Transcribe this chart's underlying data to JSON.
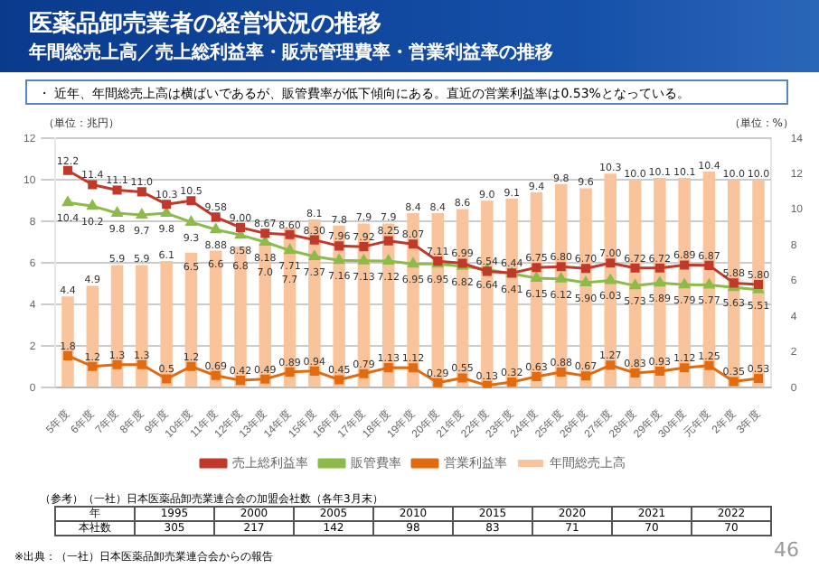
{
  "chart_data": {
    "type": "bar",
    "title": "医薬品卸売業者の経営状況の推移",
    "subtitle": "年間総売上高／売上総利益率・販売管理費率・営業利益率の推移",
    "ylabel": "（単位：兆円）",
    "y2label": "（単位：%）",
    "annotations": [
      "・ 近年、年間総売上高は横ばいであるが、販管費率が低下傾向にある。直近の営業利益率は0.53%となっている。",
      "※出典：（一社）日本医薬品卸売業連合会からの報告",
      "46",
      "（参考）（一社）日本医薬品卸売業連合会の加盟会社数（各年3月末）",
      "年",
      "1995",
      "2000",
      "2005",
      "2010",
      "2015",
      "2020",
      "2021",
      "2022",
      "本社数",
      "305",
      "217",
      "142",
      "98",
      "83",
      "71",
      "70",
      "70"
    ],
    "categories": [
      "5年度",
      "6年度",
      "7年度",
      "8年度",
      "9年度",
      "10年度",
      "11年度",
      "12年度",
      "13年度",
      "14年度",
      "15年度",
      "16年度",
      "17年度",
      "18年度",
      "19年度",
      "20年度",
      "21年度",
      "22年度",
      "23年度",
      "24年度",
      "25年度",
      "26年度",
      "27年度",
      "28年度",
      "29年度",
      "30年度",
      "元年度",
      "2年度",
      "3年度"
    ],
    "series": [
      {
        "name": "年間総売上高",
        "color": "#f9c49b",
        "values": [
          4.4,
          4.9,
          5.9,
          5.9,
          6.1,
          6.5,
          6.6,
          6.8,
          7.0,
          7.7,
          8.1,
          7.8,
          7.9,
          7.9,
          8.4,
          8.4,
          8.6,
          9.0,
          9.1,
          9.4,
          9.8,
          9.6,
          10.3,
          10.0,
          10.1,
          10.1,
          10.4,
          10.0,
          10.0
        ],
        "value_labels": [
          "4.4",
          "4.9",
          "5.9",
          "5.9",
          "6.1",
          "6.5",
          "6.6",
          "6.8",
          "7.0",
          "7.7",
          "8.1",
          "7.8",
          "7.9",
          "7.9",
          "8.4",
          "8.4",
          "8.6",
          "9.0",
          "9.1",
          "9.4",
          "9.8",
          "9.6",
          "10.3",
          "10.0",
          "10.1",
          "10.1",
          "10.4",
          "10.0",
          "10.0"
        ]
      },
      {
        "name": "売上総利益率",
        "type": "line",
        "axis": "y2",
        "marker": "square",
        "color": "#c0392b",
        "values": [
          12.2,
          11.4,
          11.1,
          11.0,
          10.3,
          10.5,
          9.58,
          9.0,
          8.67,
          8.6,
          8.3,
          7.96,
          7.92,
          8.25,
          8.07,
          7.11,
          6.99,
          6.54,
          6.44,
          6.75,
          6.8,
          6.7,
          7.0,
          6.72,
          6.72,
          6.89,
          6.87,
          5.88,
          5.8
        ],
        "value_labels": [
          "12.2",
          "11.4",
          "11.1",
          "11.0",
          "10.3",
          "10.5",
          "9.58",
          "9.00",
          "8.67",
          "8.60",
          "8.30",
          "7.96",
          "7.92",
          "8.25",
          "8.07",
          "7.11",
          "6.99",
          "6.54",
          "6.44",
          "6.75",
          "6.80",
          "6.70",
          "7.00",
          "6.72",
          "6.72",
          "6.89",
          "6.87",
          "5.88",
          "5.80"
        ]
      },
      {
        "name": "販管費率",
        "type": "line",
        "axis": "y2",
        "marker": "triangle",
        "color": "#8dbb4a",
        "values": [
          10.4,
          10.2,
          9.8,
          9.7,
          9.8,
          9.3,
          8.88,
          8.58,
          8.18,
          7.71,
          7.37,
          7.16,
          7.13,
          7.12,
          6.95,
          6.95,
          6.82,
          6.64,
          6.41,
          6.15,
          6.12,
          5.9,
          6.03,
          5.73,
          5.89,
          5.79,
          5.77,
          5.63,
          5.51
        ],
        "value_labels": [
          "10.4",
          "10.2",
          "9.8",
          "9.7",
          "9.8",
          "9.3",
          "8.88",
          "8.58",
          "8.18",
          "7.71",
          "7.37",
          "7.16",
          "7.13",
          "7.12",
          "6.95",
          "6.95",
          "6.82",
          "6.64",
          "6.41",
          "6.15",
          "6.12",
          "5.90",
          "6.03",
          "5.73",
          "5.89",
          "5.79",
          "5.77",
          "5.63",
          "5.51"
        ]
      },
      {
        "name": "営業利益率",
        "type": "line",
        "axis": "y2",
        "marker": "square",
        "color": "#e26b10",
        "values": [
          1.8,
          1.2,
          1.3,
          1.3,
          0.5,
          1.2,
          0.69,
          0.42,
          0.49,
          0.89,
          0.94,
          0.45,
          0.79,
          1.13,
          1.12,
          0.29,
          0.55,
          0.13,
          0.32,
          0.63,
          0.88,
          0.67,
          1.27,
          0.83,
          0.93,
          1.12,
          1.25,
          0.35,
          0.53
        ],
        "value_labels": [
          "1.8",
          "1.2",
          "1.3",
          "1.3",
          "0.5",
          "1.2",
          "0.69",
          "0.42",
          "0.49",
          "0.89",
          "0.94",
          "0.45",
          "0.79",
          "1.13",
          "1.12",
          "0.29",
          "0.55",
          "0.13",
          "0.32",
          "0.63",
          "0.88",
          "0.67",
          "1.27",
          "0.83",
          "0.93",
          "1.12",
          "1.25",
          "0.35",
          "0.53"
        ]
      }
    ],
    "ylim": [
      0,
      12
    ],
    "yticks": [
      0,
      2,
      4,
      6,
      8,
      10,
      12
    ],
    "y2lim": [
      0,
      14
    ],
    "y2ticks": [
      0,
      2,
      4,
      6,
      8,
      10,
      12,
      14
    ],
    "grid": "y",
    "legend": "bottom"
  }
}
